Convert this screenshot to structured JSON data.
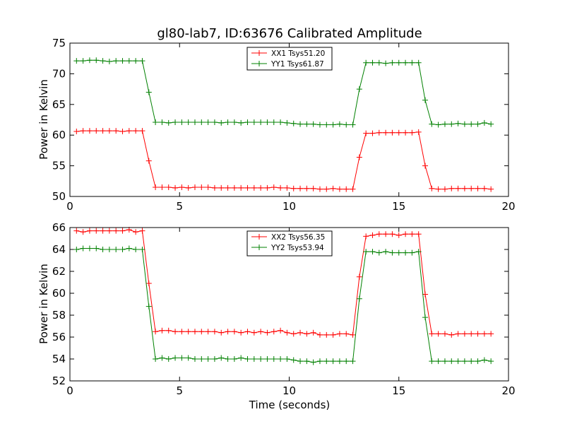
{
  "chart_data": [
    {
      "type": "line",
      "title": "gl80-lab7, ID:63676 Calibrated Amplitude",
      "xlabel": "",
      "ylabel": "Power in Kelvin",
      "xlim": [
        0,
        20
      ],
      "ylim": [
        50,
        75
      ],
      "xticks": [
        0,
        5,
        10,
        15,
        20
      ],
      "yticks": [
        50,
        55,
        60,
        65,
        70,
        75
      ],
      "legend_position": "top-center",
      "grid": false,
      "x": [
        0.3,
        0.6,
        0.9,
        1.2,
        1.5,
        1.8,
        2.1,
        2.4,
        2.7,
        3.0,
        3.3,
        3.6,
        3.9,
        4.2,
        4.5,
        4.8,
        5.1,
        5.4,
        5.7,
        6.0,
        6.3,
        6.6,
        6.9,
        7.2,
        7.5,
        7.8,
        8.1,
        8.4,
        8.7,
        9.0,
        9.3,
        9.6,
        9.9,
        10.2,
        10.5,
        10.8,
        11.1,
        11.4,
        11.7,
        12.0,
        12.3,
        12.6,
        12.9,
        13.2,
        13.5,
        13.8,
        14.1,
        14.4,
        14.7,
        15.0,
        15.3,
        15.6,
        15.9,
        16.2,
        16.5,
        16.8,
        17.1,
        17.4,
        17.7,
        18.0,
        18.3,
        18.6,
        18.9,
        19.2
      ],
      "series": [
        {
          "name": "XX1 Tsys51.20",
          "color": "#ff0000",
          "values": [
            60.6,
            60.7,
            60.7,
            60.7,
            60.7,
            60.7,
            60.7,
            60.6,
            60.7,
            60.7,
            60.7,
            55.8,
            51.5,
            51.5,
            51.5,
            51.4,
            51.5,
            51.4,
            51.5,
            51.5,
            51.5,
            51.4,
            51.4,
            51.4,
            51.4,
            51.4,
            51.4,
            51.4,
            51.4,
            51.4,
            51.5,
            51.4,
            51.4,
            51.3,
            51.3,
            51.3,
            51.3,
            51.2,
            51.2,
            51.3,
            51.2,
            51.2,
            51.2,
            56.4,
            60.3,
            60.3,
            60.4,
            60.4,
            60.4,
            60.4,
            60.4,
            60.4,
            60.5,
            55.0,
            51.3,
            51.2,
            51.2,
            51.3,
            51.3,
            51.3,
            51.3,
            51.3,
            51.3,
            51.2
          ]
        },
        {
          "name": "YY1 Tsys61.87",
          "color": "#008000",
          "values": [
            72.1,
            72.1,
            72.2,
            72.2,
            72.1,
            72.0,
            72.1,
            72.1,
            72.1,
            72.1,
            72.1,
            67.0,
            62.1,
            62.1,
            62.0,
            62.1,
            62.1,
            62.1,
            62.1,
            62.1,
            62.1,
            62.1,
            62.0,
            62.1,
            62.1,
            62.0,
            62.1,
            62.1,
            62.1,
            62.1,
            62.1,
            62.1,
            62.0,
            61.9,
            61.8,
            61.8,
            61.8,
            61.7,
            61.7,
            61.7,
            61.8,
            61.7,
            61.7,
            67.5,
            71.8,
            71.8,
            71.8,
            71.7,
            71.8,
            71.8,
            71.8,
            71.8,
            71.8,
            65.7,
            61.8,
            61.7,
            61.8,
            61.8,
            61.9,
            61.8,
            61.8,
            61.8,
            62.0,
            61.8
          ]
        }
      ]
    },
    {
      "type": "line",
      "title": "",
      "xlabel": "Time (seconds)",
      "ylabel": "Power in Kelvin",
      "xlim": [
        0,
        20
      ],
      "ylim": [
        52,
        66
      ],
      "xticks": [
        0,
        5,
        10,
        15,
        20
      ],
      "yticks": [
        52,
        54,
        56,
        58,
        60,
        62,
        64,
        66
      ],
      "legend_position": "top-center",
      "grid": false,
      "x": [
        0.3,
        0.6,
        0.9,
        1.2,
        1.5,
        1.8,
        2.1,
        2.4,
        2.7,
        3.0,
        3.3,
        3.6,
        3.9,
        4.2,
        4.5,
        4.8,
        5.1,
        5.4,
        5.7,
        6.0,
        6.3,
        6.6,
        6.9,
        7.2,
        7.5,
        7.8,
        8.1,
        8.4,
        8.7,
        9.0,
        9.3,
        9.6,
        9.9,
        10.2,
        10.5,
        10.8,
        11.1,
        11.4,
        11.7,
        12.0,
        12.3,
        12.6,
        12.9,
        13.2,
        13.5,
        13.8,
        14.1,
        14.4,
        14.7,
        15.0,
        15.3,
        15.6,
        15.9,
        16.2,
        16.5,
        16.8,
        17.1,
        17.4,
        17.7,
        18.0,
        18.3,
        18.6,
        18.9,
        19.2
      ],
      "series": [
        {
          "name": "XX2 Tsys56.35",
          "color": "#ff0000",
          "values": [
            65.7,
            65.6,
            65.7,
            65.7,
            65.7,
            65.7,
            65.7,
            65.7,
            65.8,
            65.6,
            65.7,
            60.9,
            56.5,
            56.6,
            56.6,
            56.5,
            56.5,
            56.5,
            56.5,
            56.5,
            56.5,
            56.5,
            56.4,
            56.5,
            56.5,
            56.4,
            56.5,
            56.4,
            56.5,
            56.4,
            56.5,
            56.6,
            56.4,
            56.3,
            56.4,
            56.3,
            56.4,
            56.2,
            56.2,
            56.2,
            56.3,
            56.3,
            56.2,
            61.5,
            65.2,
            65.3,
            65.4,
            65.4,
            65.4,
            65.3,
            65.4,
            65.4,
            65.4,
            59.9,
            56.3,
            56.3,
            56.3,
            56.2,
            56.3,
            56.3,
            56.3,
            56.3,
            56.3,
            56.3
          ]
        },
        {
          "name": "YY2 Tsys53.94",
          "color": "#008000",
          "values": [
            64.0,
            64.1,
            64.1,
            64.1,
            64.0,
            64.0,
            64.0,
            64.0,
            64.1,
            64.0,
            64.0,
            58.8,
            54.0,
            54.1,
            54.0,
            54.1,
            54.1,
            54.1,
            54.0,
            54.0,
            54.0,
            54.0,
            54.1,
            54.0,
            54.0,
            54.1,
            54.0,
            54.0,
            54.0,
            54.0,
            54.0,
            54.0,
            54.0,
            53.9,
            53.8,
            53.8,
            53.7,
            53.8,
            53.8,
            53.8,
            53.8,
            53.8,
            53.8,
            59.5,
            63.8,
            63.8,
            63.7,
            63.8,
            63.7,
            63.7,
            63.7,
            63.7,
            63.8,
            57.8,
            53.8,
            53.8,
            53.8,
            53.8,
            53.8,
            53.8,
            53.8,
            53.8,
            53.9,
            53.8
          ]
        }
      ]
    }
  ]
}
